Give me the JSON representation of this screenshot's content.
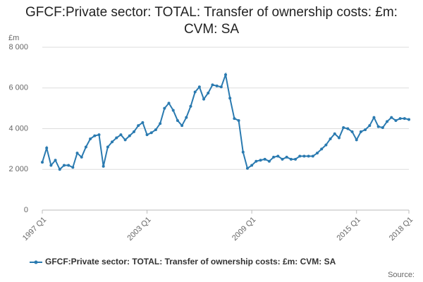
{
  "chart_data": {
    "type": "line",
    "title": "GFCF:Private sector: TOTAL: Transfer of ownership costs: £m: CVM: SA",
    "y_unit": "£m",
    "source": "Source:",
    "categories": [
      "1997 Q1",
      null,
      null,
      null,
      null,
      null,
      null,
      null,
      null,
      null,
      null,
      null,
      null,
      null,
      null,
      null,
      null,
      null,
      null,
      null,
      null,
      null,
      null,
      null,
      "2003 Q1",
      null,
      null,
      null,
      null,
      null,
      null,
      null,
      null,
      null,
      null,
      null,
      null,
      null,
      null,
      null,
      null,
      null,
      null,
      null,
      null,
      null,
      null,
      null,
      "2009 Q1",
      null,
      null,
      null,
      null,
      null,
      null,
      null,
      null,
      null,
      null,
      null,
      null,
      null,
      null,
      null,
      null,
      null,
      null,
      null,
      null,
      null,
      null,
      null,
      "2015 Q1",
      null,
      null,
      null,
      null,
      null,
      null,
      null,
      null,
      null,
      null,
      null,
      "2018 Q1"
    ],
    "series": [
      {
        "name": "GFCF:Private sector: TOTAL: Transfer of ownership costs: £m: CVM: SA",
        "color": "#2a7ab0",
        "values": [
          2350,
          3050,
          2200,
          2450,
          2000,
          2200,
          2200,
          2100,
          2800,
          2600,
          3100,
          3500,
          3650,
          3700,
          2150,
          3100,
          3350,
          3550,
          3700,
          3450,
          3650,
          3850,
          4150,
          4300,
          3700,
          3800,
          3950,
          4250,
          5000,
          5250,
          4900,
          4400,
          4150,
          4550,
          5100,
          5800,
          6050,
          5450,
          5750,
          6150,
          6100,
          6050,
          6650,
          5500,
          4500,
          4400,
          2850,
          2050,
          2200,
          2400,
          2450,
          2500,
          2400,
          2600,
          2650,
          2500,
          2600,
          2500,
          2500,
          2650,
          2650,
          2650,
          2650,
          2800,
          3000,
          3200,
          3500,
          3750,
          3550,
          4050,
          4000,
          3850,
          3450,
          3850,
          3950,
          4150,
          4550,
          4100,
          4050,
          4350,
          4550,
          4400,
          4500,
          4500,
          4450
        ]
      }
    ],
    "ylim": [
      0,
      8000
    ],
    "yticks": [
      0,
      {
        "value": 2000,
        "label": "2 000"
      },
      {
        "value": 4000,
        "label": "4 000"
      },
      {
        "value": 6000,
        "label": "6 000"
      },
      {
        "value": 8000,
        "label": "8 000"
      }
    ],
    "grid": true
  }
}
